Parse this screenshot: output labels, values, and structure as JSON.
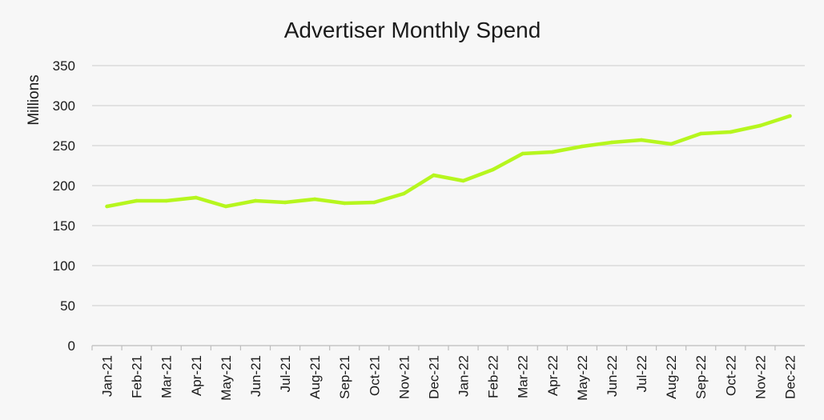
{
  "chart_data": {
    "type": "line",
    "title": "Advertiser Monthly Spend",
    "xlabel": "",
    "ylabel": "Millions",
    "ylim": [
      0,
      350
    ],
    "yticks": [
      0,
      50,
      100,
      150,
      200,
      250,
      300,
      350
    ],
    "grid": true,
    "categories": [
      "Jan-21",
      "Feb-21",
      "Mar-21",
      "Apr-21",
      "May-21",
      "Jun-21",
      "Jul-21",
      "Aug-21",
      "Sep-21",
      "Oct-21",
      "Nov-21",
      "Dec-21",
      "Jan-22",
      "Feb-22",
      "Mar-22",
      "Apr-22",
      "May-22",
      "Jun-22",
      "Jul-22",
      "Aug-22",
      "Sep-22",
      "Oct-22",
      "Nov-22",
      "Dec-22"
    ],
    "series": [
      {
        "color": "#b6f61e",
        "values": [
          174,
          181,
          181,
          185,
          174,
          181,
          179,
          183,
          178,
          179,
          190,
          213,
          206,
          220,
          240,
          242,
          249,
          254,
          257,
          252,
          265,
          267,
          275,
          287
        ]
      }
    ]
  }
}
